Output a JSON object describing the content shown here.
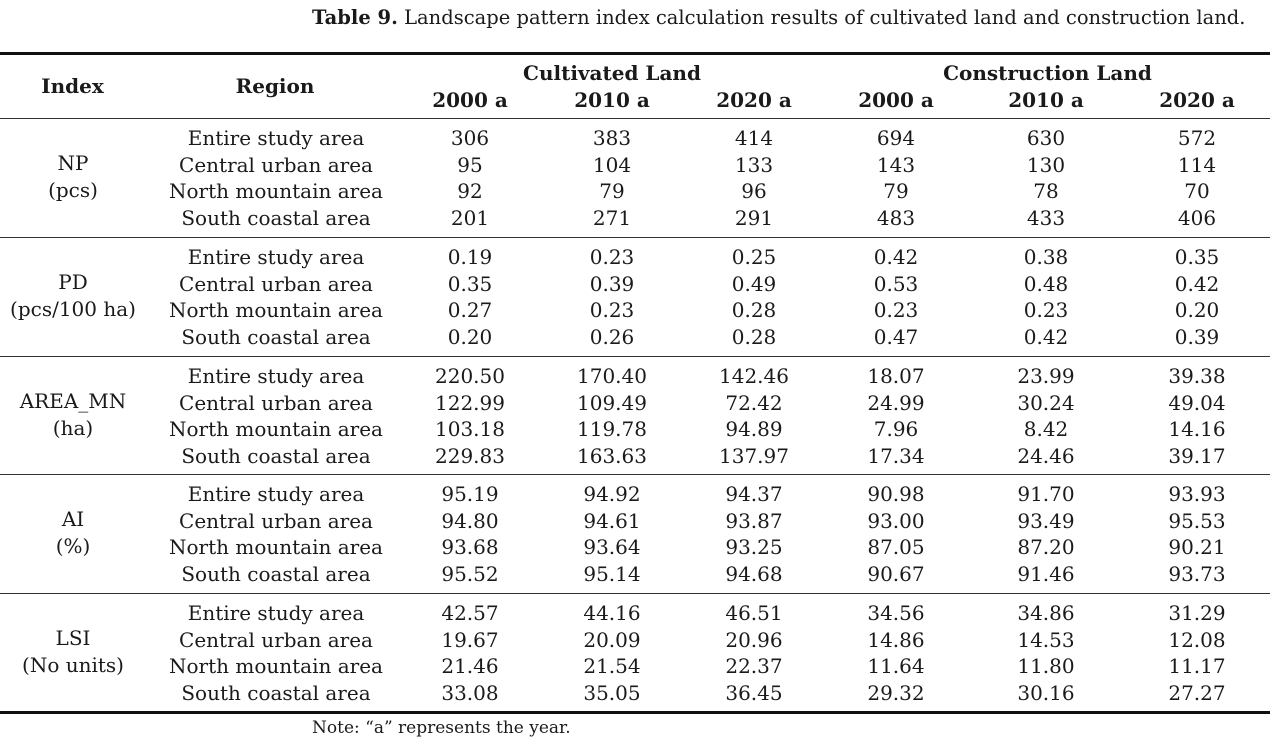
{
  "caption": {
    "label": "Table 9.",
    "text": "Landscape pattern index calculation results of cultivated land and construction land."
  },
  "header": {
    "index": "Index",
    "region": "Region",
    "group1": "Cultivated Land",
    "group2": "Construction Land",
    "years": [
      "2000 a",
      "2010 a",
      "2020 a",
      "2000 a",
      "2010 a",
      "2020 a"
    ]
  },
  "groups": [
    {
      "index": "NP",
      "unit": "(pcs)",
      "rows": [
        {
          "region": "Entire study area",
          "values": [
            "306",
            "383",
            "414",
            "694",
            "630",
            "572"
          ]
        },
        {
          "region": "Central urban area",
          "values": [
            "95",
            "104",
            "133",
            "143",
            "130",
            "114"
          ]
        },
        {
          "region": "North mountain area",
          "values": [
            "92",
            "79",
            "96",
            "79",
            "78",
            "70"
          ]
        },
        {
          "region": "South coastal area",
          "values": [
            "201",
            "271",
            "291",
            "483",
            "433",
            "406"
          ]
        }
      ]
    },
    {
      "index": "PD",
      "unit": "(pcs/100 ha)",
      "rows": [
        {
          "region": "Entire study area",
          "values": [
            "0.19",
            "0.23",
            "0.25",
            "0.42",
            "0.38",
            "0.35"
          ]
        },
        {
          "region": "Central urban area",
          "values": [
            "0.35",
            "0.39",
            "0.49",
            "0.53",
            "0.48",
            "0.42"
          ]
        },
        {
          "region": "North mountain area",
          "values": [
            "0.27",
            "0.23",
            "0.28",
            "0.23",
            "0.23",
            "0.20"
          ]
        },
        {
          "region": "South coastal area",
          "values": [
            "0.20",
            "0.26",
            "0.28",
            "0.47",
            "0.42",
            "0.39"
          ]
        }
      ]
    },
    {
      "index": "AREA_MN",
      "unit": "(ha)",
      "rows": [
        {
          "region": "Entire study area",
          "values": [
            "220.50",
            "170.40",
            "142.46",
            "18.07",
            "23.99",
            "39.38"
          ]
        },
        {
          "region": "Central urban area",
          "values": [
            "122.99",
            "109.49",
            "72.42",
            "24.99",
            "30.24",
            "49.04"
          ]
        },
        {
          "region": "North mountain area",
          "values": [
            "103.18",
            "119.78",
            "94.89",
            "7.96",
            "8.42",
            "14.16"
          ]
        },
        {
          "region": "South coastal area",
          "values": [
            "229.83",
            "163.63",
            "137.97",
            "17.34",
            "24.46",
            "39.17"
          ]
        }
      ]
    },
    {
      "index": "AI",
      "unit": "(%)",
      "rows": [
        {
          "region": "Entire study area",
          "values": [
            "95.19",
            "94.92",
            "94.37",
            "90.98",
            "91.70",
            "93.93"
          ]
        },
        {
          "region": "Central urban area",
          "values": [
            "94.80",
            "94.61",
            "93.87",
            "93.00",
            "93.49",
            "95.53"
          ]
        },
        {
          "region": "North mountain area",
          "values": [
            "93.68",
            "93.64",
            "93.25",
            "87.05",
            "87.20",
            "90.21"
          ]
        },
        {
          "region": "South coastal area",
          "values": [
            "95.52",
            "95.14",
            "94.68",
            "90.67",
            "91.46",
            "93.73"
          ]
        }
      ]
    },
    {
      "index": "LSI",
      "unit": "(No units)",
      "rows": [
        {
          "region": "Entire study area",
          "values": [
            "42.57",
            "44.16",
            "46.51",
            "34.56",
            "34.86",
            "31.29"
          ]
        },
        {
          "region": "Central urban area",
          "values": [
            "19.67",
            "20.09",
            "20.96",
            "14.86",
            "14.53",
            "12.08"
          ]
        },
        {
          "region": "North mountain area",
          "values": [
            "21.46",
            "21.54",
            "22.37",
            "11.64",
            "11.80",
            "11.17"
          ]
        },
        {
          "region": "South coastal area",
          "values": [
            "33.08",
            "35.05",
            "36.45",
            "29.32",
            "30.16",
            "27.27"
          ]
        }
      ]
    }
  ],
  "note": "Note: “a” represents the year."
}
